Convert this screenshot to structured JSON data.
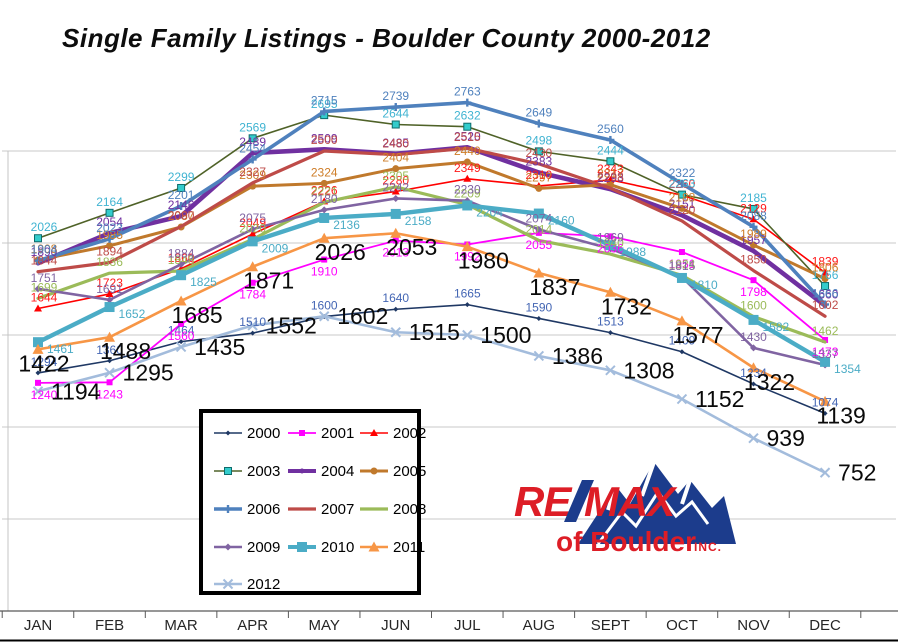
{
  "title": "Single Family Listings - Boulder County 2000-2012",
  "months": [
    "JAN",
    "FEB",
    "MAR",
    "APR",
    "MAY",
    "JUN",
    "JUL",
    "AUG",
    "SEPT",
    "OCT",
    "NOV",
    "DEC"
  ],
  "logo": {
    "re": "RE",
    "slash": "/",
    "max": "MAX",
    "line2": "of Boulder",
    "line3": "INC.",
    "red": "#DD1D26",
    "blue": "#1C3C8C"
  },
  "axis": {
    "ymin": 0,
    "ymax": 3000,
    "grid_step": 500,
    "gridlines": [
      500,
      1000,
      1500,
      2000,
      2500
    ]
  },
  "chart_data": {
    "type": "line",
    "title": "Single Family Listings - Boulder County 2000-2012",
    "xlabel": "",
    "ylabel": "",
    "ylim": [
      0,
      3000
    ],
    "grid": true,
    "legend_position": "bottom-left-box",
    "categories": [
      "JAN",
      "FEB",
      "MAR",
      "APR",
      "MAY",
      "JUN",
      "JUL",
      "AUG",
      "SEPT",
      "OCT",
      "NOV",
      "DEC"
    ],
    "series": [
      {
        "name": "2000",
        "color": "#1F3864",
        "label_color": "#4466B4",
        "width": 1.6,
        "marker": "diamond",
        "msize": 5,
        "label_style": "small",
        "label_pos": "above",
        "values": [
          1294,
          1360,
          1464,
          1510,
          1600,
          1640,
          1665,
          1590,
          1513,
          1409,
          1234,
          1074
        ]
      },
      {
        "name": "2001",
        "color": "#FF00FF",
        "label_color": "#FF00FF",
        "width": 1.8,
        "marker": "square",
        "msize": 6,
        "label_style": "small",
        "label_pos": "below",
        "values": [
          1240,
          1243,
          1560,
          1784,
          1910,
          2013,
          1992,
          2055,
          2036,
          1951,
          1798,
          1473
        ]
      },
      {
        "name": "2002",
        "color": "#FF0000",
        "label_color": "#FF1A1A",
        "width": 1.6,
        "marker": "triangle",
        "msize": 6,
        "label_style": "small",
        "label_pos": "above",
        "values": [
          1644,
          1723,
          1860,
          2049,
          2226,
          2280,
          2349,
          2310,
          2343,
          2260,
          2129,
          1839
        ]
      },
      {
        "name": "2003",
        "color": "#4F6228",
        "label_color": "#41B4D2",
        "width": 1.6,
        "marker": "squareT",
        "msize": 7,
        "marker_fill": "#33CCCC",
        "label_style": "small",
        "label_pos": "above",
        "values": [
          2026,
          2164,
          2299,
          2569,
          2695,
          2644,
          2632,
          2498,
          2444,
          2263,
          2185,
          1766
        ]
      },
      {
        "name": "2004",
        "color": "#7030A0",
        "label_color": "#7030A0",
        "width": 4.6,
        "marker": "circle",
        "msize": 4,
        "label_style": "small",
        "label_pos": "above",
        "values": [
          1890,
          2054,
          2146,
          2489,
          2509,
          2485,
          2520,
          2383,
          2293,
          2151,
          1957,
          1660
        ]
      },
      {
        "name": "2005",
        "color": "#C0792C",
        "label_color": "#CE7D28",
        "width": 3.0,
        "marker": "circle",
        "msize": 7,
        "label_style": "small",
        "label_pos": "above",
        "values": [
          1908,
          1985,
          2087,
          2309,
          2324,
          2404,
          2440,
          2297,
          2317,
          2188,
          1989,
          1806
        ]
      },
      {
        "name": "2006",
        "color": "#4F81BD",
        "label_color": "#4F81BD",
        "width": 3.6,
        "marker": "plus",
        "msize": 8,
        "label_style": "small",
        "label_pos": "above",
        "values": [
          1904,
          2023,
          2201,
          2454,
          2715,
          2739,
          2763,
          2649,
          2560,
          2322,
          2088,
          1666
        ]
      },
      {
        "name": "2007",
        "color": "#BE4B48",
        "label_color": "#BE4B48",
        "width": 3.2,
        "marker": "none",
        "msize": 0,
        "label_style": "small",
        "label_pos": "above",
        "values": [
          1844,
          1894,
          2090,
          2327,
          2500,
          2480,
          2515,
          2430,
          2298,
          2120,
          1850,
          1602
        ]
      },
      {
        "name": "2008",
        "color": "#9BBB59",
        "label_color": "#9BBB59",
        "width": 3.2,
        "marker": "none",
        "msize": 0,
        "label_style": "small",
        "label_pos": "above",
        "values": [
          1699,
          1836,
          1848,
          2020,
          2221,
          2305,
          2209,
          2014,
          1940,
          1824,
          1600,
          1462
        ]
      },
      {
        "name": "2009",
        "color": "#8064A2",
        "label_color": "#8064A2",
        "width": 2.6,
        "marker": "diamond",
        "msize": 7,
        "label_style": "small",
        "label_pos": "above",
        "values": [
          1751,
          1691,
          1884,
          2075,
          2180,
          2242,
          2230,
          2074,
          1969,
          1815,
          1430,
          1337
        ]
      },
      {
        "name": "2010",
        "color": "#4BACC6",
        "label_color": "#4BACC6",
        "width": 4.4,
        "marker": "square",
        "msize": 10,
        "label_style": "small",
        "label_pos": "right-below",
        "values": [
          1461,
          1652,
          1825,
          2009,
          2136,
          2158,
          2204,
          2160,
          1988,
          1810,
          1582,
          1354
        ]
      },
      {
        "name": "2011",
        "color": "#F79646",
        "label_color": "#0a0a0a",
        "width": 2.6,
        "marker": "triangle",
        "msize": 9,
        "label_style": "big",
        "label_pos": "big-below",
        "values": [
          1422,
          1488,
          1685,
          1871,
          2026,
          2053,
          1980,
          1837,
          1732,
          1577,
          1322,
          1139
        ]
      },
      {
        "name": "2012",
        "color": "#A3BCDC",
        "label_color": "#0a0a0a",
        "width": 2.6,
        "marker": "x",
        "msize": 9,
        "label_style": "big",
        "label_pos": "big-right",
        "values": [
          1194,
          1295,
          1435,
          1552,
          1602,
          1515,
          1500,
          1386,
          1308,
          1152,
          939,
          752
        ]
      }
    ]
  }
}
